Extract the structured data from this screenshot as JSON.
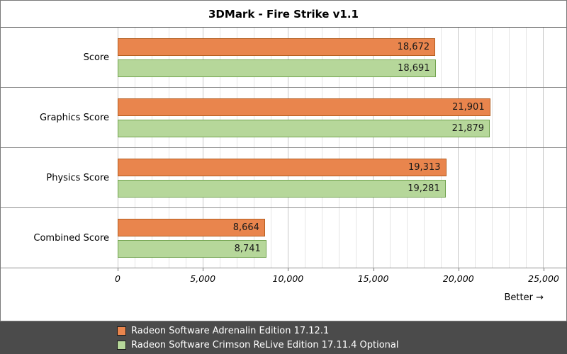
{
  "better_label": "Better →",
  "chart_data": {
    "type": "bar",
    "orientation": "horizontal",
    "title": "3DMark - Fire Strike v1.1",
    "categories": [
      "Score",
      "Graphics Score",
      "Physics Score",
      "Combined Score"
    ],
    "series": [
      {
        "name": "Radeon Software Adrenalin Edition 17.12.1",
        "color": "#e9854d",
        "border_color": "#b35c1e",
        "values": [
          18672,
          21901,
          19313,
          8664
        ],
        "value_labels": [
          "18,672",
          "21,901",
          "19,313",
          "8,664"
        ]
      },
      {
        "name": "Radeon Software Crimson ReLive Edition 17.11.4 Optional",
        "color": "#b6d79a",
        "border_color": "#71a24e",
        "values": [
          18691,
          21879,
          19281,
          8741
        ],
        "value_labels": [
          "18,691",
          "21,879",
          "19,281",
          "8,741"
        ]
      }
    ],
    "xlim": [
      0,
      25000
    ],
    "xticks": [
      0,
      5000,
      10000,
      15000,
      20000,
      25000
    ],
    "xtick_labels": [
      "0",
      "5,000",
      "10,000",
      "15,000",
      "20,000",
      "25,000"
    ],
    "grid": "vertical: minor every 1000, major every 5000",
    "legend_position": "bottom"
  },
  "legend": {
    "items": [
      {
        "label": "Radeon Software Adrenalin Edition 17.12.1",
        "color": "#e9854d"
      },
      {
        "label": "Radeon Software Crimson ReLive Edition 17.11.4 Optional",
        "color": "#b6d79a"
      }
    ]
  }
}
